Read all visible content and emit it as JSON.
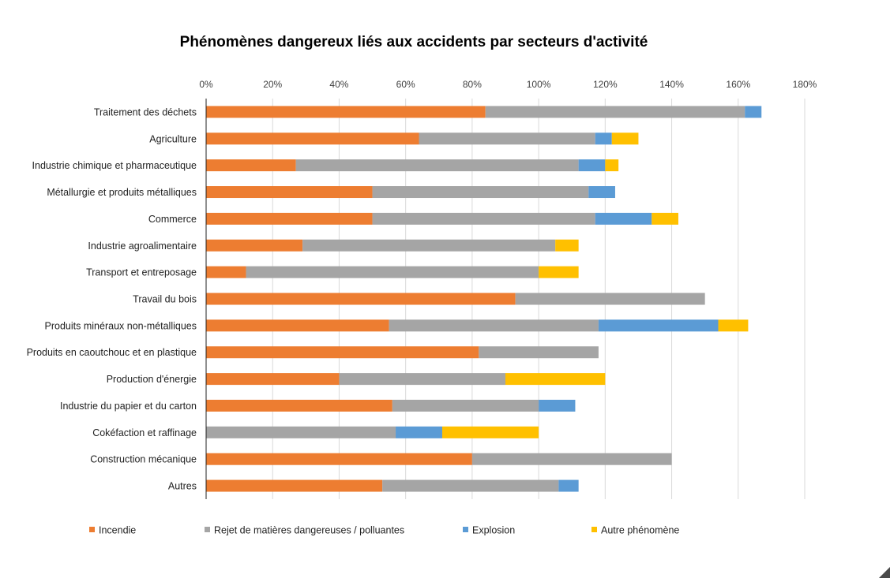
{
  "chart_data": {
    "type": "bar",
    "orientation": "horizontal",
    "stacked": true,
    "title": "Phénomènes dangereux liés aux accidents par secteurs d'activité",
    "xlabel": "",
    "ylabel": "",
    "xlim": [
      0,
      180
    ],
    "xticks": [
      "0%",
      "20%",
      "40%",
      "60%",
      "80%",
      "100%",
      "120%",
      "140%",
      "160%",
      "180%"
    ],
    "xaxis_position": "top",
    "grid": true,
    "legend_position": "bottom",
    "categories": [
      "Traitement des déchets",
      "Agriculture",
      "Industrie chimique et pharmaceutique",
      "Métallurgie et produits métalliques",
      "Commerce",
      "Industrie agroalimentaire",
      "Transport et entreposage",
      "Travail du bois",
      "Produits minéraux non-métalliques",
      "Produits en caoutchouc et en plastique",
      "Production d'énergie",
      "Industrie du papier et du carton",
      "Cokéfaction et raffinage",
      "Construction mécanique",
      "Autres"
    ],
    "series": [
      {
        "name": "Incendie",
        "color": "#ED7D31",
        "values": [
          84,
          64,
          27,
          50,
          50,
          29,
          12,
          93,
          55,
          82,
          40,
          56,
          0,
          80,
          53
        ]
      },
      {
        "name": "Rejet de matières dangereuses / polluantes",
        "color": "#A5A5A5",
        "values": [
          78,
          53,
          85,
          65,
          67,
          76,
          88,
          57,
          63,
          36,
          50,
          44,
          57,
          60,
          53
        ]
      },
      {
        "name": "Explosion",
        "color": "#5B9BD5",
        "values": [
          5,
          5,
          8,
          8,
          17,
          0,
          0,
          0,
          36,
          0,
          0,
          11,
          14,
          0,
          6
        ]
      },
      {
        "name": "Autre phénomène",
        "color": "#FFC000",
        "values": [
          0,
          8,
          4,
          0,
          8,
          7,
          12,
          0,
          9,
          0,
          30,
          0,
          29,
          0,
          0
        ]
      }
    ]
  }
}
